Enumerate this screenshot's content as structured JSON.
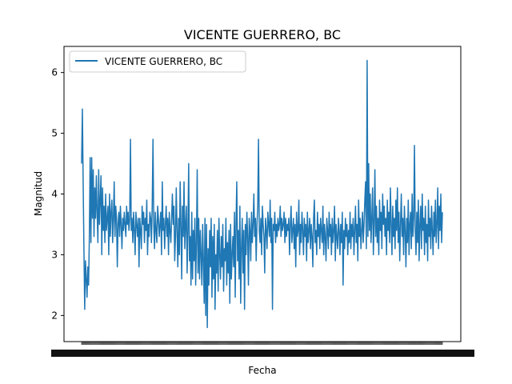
{
  "chart_data": {
    "type": "line",
    "title": "VICENTE GUERRERO, BC",
    "xlabel": "Fecha",
    "ylabel": "Magnitud",
    "ylim": [
      1.57,
      6.43
    ],
    "yticks": [
      2,
      3,
      4,
      5,
      6
    ],
    "grid": false,
    "legend_position": "top-left",
    "series": [
      {
        "name": "VICENTE GUERRERO, BC",
        "color": "#1f77b4",
        "values": [
          4.5,
          5.4,
          4.2,
          3.1,
          2.1,
          2.9,
          2.6,
          2.3,
          2.8,
          2.5,
          3.3,
          4.6,
          3.2,
          4.6,
          3.6,
          4.4,
          3.3,
          4.1,
          3.6,
          4.3,
          3.7,
          3.2,
          4.4,
          3.5,
          3.9,
          4.3,
          3.0,
          4.1,
          3.4,
          3.8,
          3.2,
          4.0,
          3.4,
          3.6,
          3.8,
          3.0,
          4.0,
          3.3,
          3.7,
          3.9,
          3.2,
          3.6,
          4.2,
          3.3,
          3.8,
          3.6,
          2.8,
          3.5,
          3.7,
          3.3,
          3.8,
          3.5,
          3.1,
          3.6,
          3.4,
          3.7,
          3.5,
          3.3,
          3.8,
          3.5,
          3.7,
          3.4,
          3.6,
          4.9,
          3.4,
          3.6,
          3.2,
          3.7,
          3.4,
          3.0,
          3.7,
          3.5,
          3.3,
          3.6,
          2.8,
          3.6,
          3.4,
          3.1,
          3.8,
          3.5,
          3.7,
          3.2,
          3.6,
          3.4,
          3.9,
          3.0,
          3.5,
          3.3,
          3.7,
          3.6,
          3.2,
          3.8,
          4.9,
          3.5,
          3.1,
          3.7,
          3.4,
          3.2,
          3.8,
          3.6,
          3.3,
          3.5,
          3.7,
          3.0,
          4.2,
          3.4,
          3.6,
          3.1,
          3.5,
          3.8,
          3.3,
          3.6,
          3.0,
          3.7,
          3.4,
          3.2,
          3.6,
          4.0,
          3.5,
          3.8,
          2.9,
          3.3,
          4.1,
          3.4,
          2.8,
          3.6,
          3.0,
          4.2,
          3.5,
          2.6,
          3.8,
          3.3,
          4.2,
          3.1,
          3.5,
          3.8,
          2.7,
          3.4,
          4.5,
          2.9,
          3.3,
          2.5,
          3.7,
          2.6,
          3.4,
          2.9,
          3.6,
          2.5,
          3.2,
          4.4,
          2.7,
          3.6,
          2.6,
          3.4,
          3.0,
          2.5,
          3.5,
          2.9,
          2.2,
          3.6,
          2.0,
          3.5,
          1.8,
          3.1,
          2.5,
          3.4,
          2.8,
          3.6,
          2.3,
          3.3,
          2.6,
          3.5,
          2.1,
          3.0,
          2.7,
          3.4,
          2.4,
          3.6,
          3.0,
          2.6,
          3.3,
          2.8,
          3.5,
          2.4,
          3.1,
          2.9,
          3.6,
          2.5,
          3.2,
          2.7,
          3.4,
          2.2,
          3.5,
          2.6,
          3.0,
          3.3,
          2.8,
          3.7,
          2.3,
          3.5,
          4.2,
          2.9,
          3.4,
          2.6,
          3.8,
          2.2,
          3.1,
          3.6,
          2.7,
          3.4,
          2.1,
          3.5,
          3.0,
          3.7,
          3.3,
          2.5,
          3.6,
          3.4,
          2.9,
          3.7,
          3.2,
          3.5,
          4.0,
          3.3,
          3.6,
          2.9,
          3.5,
          3.8,
          4.9,
          3.4,
          3.2,
          3.6,
          3.0,
          3.8,
          3.5,
          3.3,
          2.7,
          3.6,
          3.4,
          3.1,
          3.7,
          3.5,
          3.3,
          3.9,
          3.2,
          3.6,
          2.1,
          3.5,
          3.4,
          3.7,
          3.2,
          3.5,
          3.3,
          3.6,
          3.4,
          3.5,
          3.8,
          3.3,
          3.6,
          3.4,
          3.5,
          3.7,
          3.2,
          3.6,
          3.3,
          3.5,
          3.4,
          3.6,
          3.0,
          3.5,
          3.8,
          3.2,
          3.4,
          3.6,
          3.1,
          3.5,
          2.8,
          3.7,
          3.3,
          3.4,
          3.9,
          3.0,
          3.5,
          3.2,
          3.7,
          3.4,
          3.0,
          3.6,
          3.3,
          3.5,
          2.9,
          3.7,
          3.2,
          3.4,
          3.6,
          3.1,
          3.5,
          3.3,
          2.8,
          3.6,
          3.9,
          3.2,
          3.4,
          3.0,
          3.7,
          3.3,
          3.5,
          3.1,
          3.6,
          3.4,
          3.2,
          3.8,
          3.0,
          3.5,
          3.3,
          2.9,
          3.6,
          3.4,
          3.1,
          3.7,
          3.3,
          3.5,
          3.0,
          3.6,
          3.2,
          3.4,
          3.8,
          2.9,
          3.5,
          3.3,
          3.1,
          3.6,
          3.4,
          3.0,
          3.5,
          3.2,
          3.7,
          2.5,
          3.4,
          3.1,
          3.6,
          3.3,
          3.5,
          3.0,
          3.4,
          3.2,
          3.7,
          3.1,
          3.5,
          3.3,
          3.6,
          3.0,
          3.4,
          3.8,
          3.2,
          3.5,
          2.9,
          3.9,
          3.3,
          3.6,
          3.1,
          3.4,
          3.7,
          3.2,
          3.5,
          3.9,
          4.2,
          3.1,
          6.2,
          3.3,
          4.5,
          3.4,
          4.0,
          3.2,
          3.6,
          4.1,
          3.0,
          3.5,
          4.4,
          3.3,
          3.8,
          3.2,
          3.6,
          3.0,
          3.9,
          3.4,
          3.7,
          3.1,
          4.0,
          3.5,
          3.8,
          3.3,
          3.6,
          3.0,
          3.9,
          3.4,
          3.7,
          3.2,
          4.1,
          3.5,
          3.0,
          3.8,
          3.3,
          3.6,
          3.1,
          3.9,
          3.4,
          4.1,
          3.2,
          3.7,
          2.9,
          3.5,
          4.0,
          3.3,
          3.6,
          3.0,
          3.8,
          3.4,
          2.8,
          3.6,
          3.2,
          3.9,
          3.0,
          3.5,
          3.7,
          3.1,
          4.0,
          3.3,
          3.6,
          4.8,
          3.4,
          3.0,
          3.7,
          3.2,
          3.9,
          2.9,
          3.5,
          3.8,
          3.1,
          4.0,
          3.4,
          3.6,
          3.0,
          3.8,
          3.2,
          3.5,
          2.9,
          3.9,
          3.3,
          3.6,
          3.1,
          3.8,
          3.4,
          3.0,
          3.7,
          3.3,
          3.9,
          3.2,
          3.5,
          4.1,
          3.1,
          3.8,
          3.4,
          4.0,
          3.2,
          3.7
        ]
      }
    ]
  }
}
